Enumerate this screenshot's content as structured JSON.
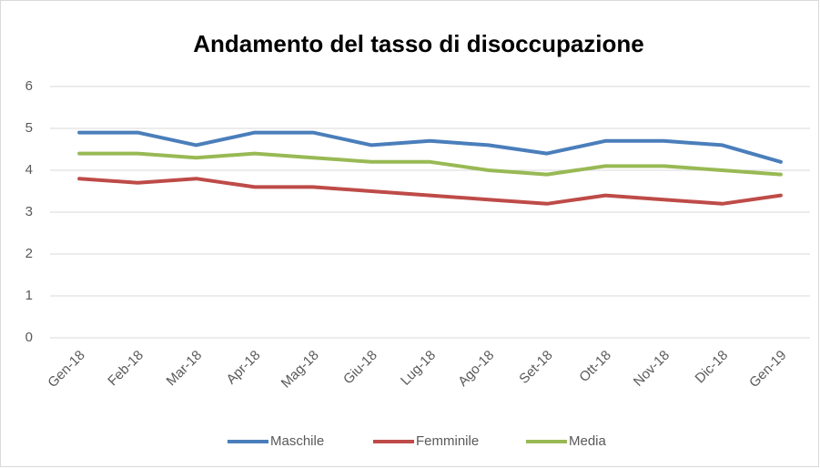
{
  "chart_data": {
    "type": "line",
    "title": "Andamento del tasso di disoccupazione",
    "categories": [
      "Gen-18",
      "Feb-18",
      "Mar-18",
      "Apr-18",
      "Mag-18",
      "Giu-18",
      "Lug-18",
      "Ago-18",
      "Set-18",
      "Ott-18",
      "Nov-18",
      "Dic-18",
      "Gen-19"
    ],
    "series": [
      {
        "name": "Maschile",
        "color": "#4a7ebb",
        "values": [
          4.9,
          4.9,
          4.6,
          4.9,
          4.9,
          4.6,
          4.7,
          4.6,
          4.4,
          4.7,
          4.7,
          4.6,
          4.2
        ]
      },
      {
        "name": "Femminile",
        "color": "#be4b48",
        "values": [
          3.8,
          3.7,
          3.8,
          3.6,
          3.6,
          3.5,
          3.4,
          3.3,
          3.2,
          3.4,
          3.3,
          3.2,
          3.4
        ]
      },
      {
        "name": "Media",
        "color": "#98b954",
        "values": [
          4.4,
          4.4,
          4.3,
          4.4,
          4.3,
          4.2,
          4.2,
          4.0,
          3.9,
          4.1,
          4.1,
          4.0,
          3.9
        ]
      }
    ],
    "ylim": [
      0,
      6
    ],
    "yticks": [
      0,
      1,
      2,
      3,
      4,
      5,
      6
    ],
    "grid": true,
    "legend": "bottom"
  }
}
